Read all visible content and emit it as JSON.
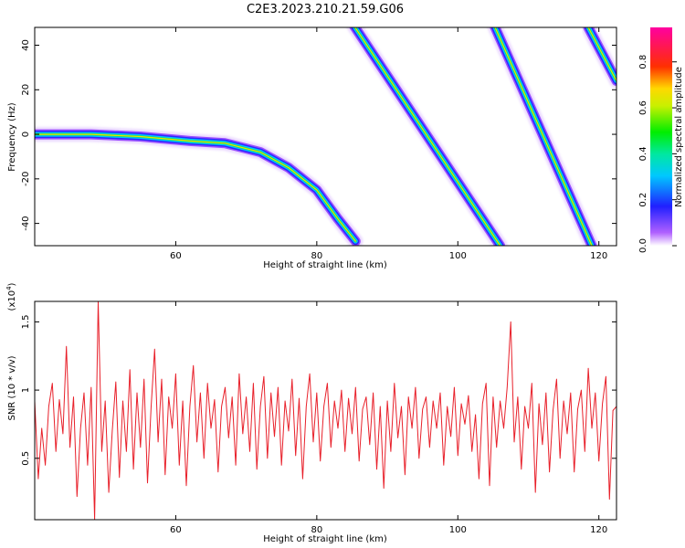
{
  "title": "C2E3.2023.210.21.59.G06",
  "colors": {
    "snr_line": "#e8202a",
    "axis": "#000000",
    "background": "#ffffff"
  },
  "chart_data": [
    {
      "type": "heatmap",
      "panel": "top",
      "xlabel": "Height of straight line (km)",
      "ylabel": "Frequency (Hz)",
      "xlim": [
        40,
        122.5
      ],
      "ylim": [
        -50,
        48
      ],
      "x_ticks": [
        60,
        80,
        100,
        120
      ],
      "y_ticks": [
        -40,
        -20,
        0,
        20,
        40
      ],
      "colorbar": {
        "label": "Normalized spectral amplitude",
        "range": [
          0.0,
          0.95
        ],
        "ticks": [
          "0.0",
          "0.2",
          "0.4",
          "0.6",
          "0.8"
        ],
        "colormap": "rainbow (violet-blue-cyan-green-yellow-red-magenta)"
      },
      "tracks": [
        {
          "name": "curve",
          "points": [
            [
              40,
              0
            ],
            [
              48,
              0
            ],
            [
              55,
              -1
            ],
            [
              62,
              -3
            ],
            [
              67,
              -4
            ],
            [
              72,
              -8
            ],
            [
              76,
              -15
            ],
            [
              80,
              -25
            ],
            [
              83,
              -38
            ],
            [
              85.5,
              -48
            ]
          ]
        },
        {
          "name": "diagonal-1",
          "points": [
            [
              85,
              50
            ],
            [
              106,
              -50
            ]
          ]
        },
        {
          "name": "diagonal-2",
          "points": [
            [
              105,
              50
            ],
            [
              119,
              -50
            ]
          ]
        },
        {
          "name": "diagonal-3",
          "points": [
            [
              118.5,
              48
            ],
            [
              122.5,
              24
            ]
          ]
        }
      ]
    },
    {
      "type": "line",
      "panel": "bottom",
      "xlabel": "Height of straight line (km)",
      "ylabel": "SNR (10 * v/v)",
      "y_multiplier": "(x10",
      "y_multiplier_exp": "4",
      "xlim": [
        40,
        122.5
      ],
      "ylim": [
        0.05,
        1.65
      ],
      "x_ticks": [
        60,
        80,
        100,
        120
      ],
      "y_ticks": [
        0.5,
        1.0,
        1.5
      ],
      "series": [
        {
          "values": [
            [
              40.0,
              0.92
            ],
            [
              40.5,
              0.35
            ],
            [
              41.0,
              0.72
            ],
            [
              41.5,
              0.45
            ],
            [
              42.0,
              0.88
            ],
            [
              42.5,
              1.05
            ],
            [
              43.0,
              0.55
            ],
            [
              43.5,
              0.93
            ],
            [
              44.0,
              0.68
            ],
            [
              44.5,
              1.32
            ],
            [
              45.0,
              0.58
            ],
            [
              45.5,
              0.95
            ],
            [
              46.0,
              0.22
            ],
            [
              46.5,
              0.72
            ],
            [
              47.0,
              0.98
            ],
            [
              47.5,
              0.45
            ],
            [
              48.0,
              1.02
            ],
            [
              48.5,
              0.05
            ],
            [
              49.0,
              1.65
            ],
            [
              49.5,
              0.55
            ],
            [
              50.0,
              0.92
            ],
            [
              50.5,
              0.25
            ],
            [
              51.0,
              0.7
            ],
            [
              51.5,
              1.06
            ],
            [
              52.0,
              0.36
            ],
            [
              52.5,
              0.92
            ],
            [
              53.0,
              0.55
            ],
            [
              53.5,
              1.15
            ],
            [
              54.0,
              0.42
            ],
            [
              54.5,
              0.98
            ],
            [
              55.0,
              0.58
            ],
            [
              55.5,
              1.08
            ],
            [
              56.0,
              0.32
            ],
            [
              56.5,
              0.87
            ],
            [
              57.0,
              1.3
            ],
            [
              57.5,
              0.62
            ],
            [
              58.0,
              1.08
            ],
            [
              58.5,
              0.38
            ],
            [
              59.0,
              0.95
            ],
            [
              59.5,
              0.72
            ],
            [
              60.0,
              1.12
            ],
            [
              60.5,
              0.45
            ],
            [
              61.0,
              0.92
            ],
            [
              61.5,
              0.3
            ],
            [
              62.0,
              0.88
            ],
            [
              62.5,
              1.18
            ],
            [
              63.0,
              0.62
            ],
            [
              63.5,
              0.98
            ],
            [
              64.0,
              0.5
            ],
            [
              64.5,
              1.05
            ],
            [
              65.0,
              0.72
            ],
            [
              65.5,
              0.93
            ],
            [
              66.0,
              0.4
            ],
            [
              66.5,
              0.88
            ],
            [
              67.0,
              1.02
            ],
            [
              67.5,
              0.65
            ],
            [
              68.0,
              0.95
            ],
            [
              68.5,
              0.45
            ],
            [
              69.0,
              1.12
            ],
            [
              69.5,
              0.68
            ],
            [
              70.0,
              0.95
            ],
            [
              70.5,
              0.55
            ],
            [
              71.0,
              1.05
            ],
            [
              71.5,
              0.42
            ],
            [
              72.0,
              0.88
            ],
            [
              72.5,
              1.1
            ],
            [
              73.0,
              0.5
            ],
            [
              73.5,
              0.98
            ],
            [
              74.0,
              0.66
            ],
            [
              74.5,
              1.02
            ],
            [
              75.0,
              0.45
            ],
            [
              75.5,
              0.92
            ],
            [
              76.0,
              0.7
            ],
            [
              76.5,
              1.08
            ],
            [
              77.0,
              0.52
            ],
            [
              77.5,
              0.94
            ],
            [
              78.0,
              0.35
            ],
            [
              78.5,
              0.88
            ],
            [
              79.0,
              1.12
            ],
            [
              79.5,
              0.62
            ],
            [
              80.0,
              0.98
            ],
            [
              80.5,
              0.48
            ],
            [
              81.0,
              0.88
            ],
            [
              81.5,
              1.05
            ],
            [
              82.0,
              0.58
            ],
            [
              82.5,
              0.92
            ],
            [
              83.0,
              0.72
            ],
            [
              83.5,
              1.0
            ],
            [
              84.0,
              0.55
            ],
            [
              84.5,
              0.94
            ],
            [
              85.0,
              0.68
            ],
            [
              85.5,
              1.02
            ],
            [
              86.0,
              0.48
            ],
            [
              86.5,
              0.86
            ],
            [
              87.0,
              0.95
            ],
            [
              87.5,
              0.6
            ],
            [
              88.0,
              0.98
            ],
            [
              88.5,
              0.42
            ],
            [
              89.0,
              0.88
            ],
            [
              89.5,
              0.28
            ],
            [
              90.0,
              0.92
            ],
            [
              90.5,
              0.55
            ],
            [
              91.0,
              1.05
            ],
            [
              91.5,
              0.65
            ],
            [
              92.0,
              0.88
            ],
            [
              92.5,
              0.38
            ],
            [
              93.0,
              0.95
            ],
            [
              93.5,
              0.72
            ],
            [
              94.0,
              1.02
            ],
            [
              94.5,
              0.5
            ],
            [
              95.0,
              0.86
            ],
            [
              95.5,
              0.95
            ],
            [
              96.0,
              0.58
            ],
            [
              96.5,
              0.92
            ],
            [
              97.0,
              0.72
            ],
            [
              97.5,
              0.98
            ],
            [
              98.0,
              0.45
            ],
            [
              98.5,
              0.88
            ],
            [
              99.0,
              0.66
            ],
            [
              99.5,
              1.02
            ],
            [
              100.0,
              0.52
            ],
            [
              100.5,
              0.9
            ],
            [
              101.0,
              0.75
            ],
            [
              101.5,
              0.96
            ],
            [
              102.0,
              0.55
            ],
            [
              102.5,
              0.82
            ],
            [
              103.0,
              0.35
            ],
            [
              103.5,
              0.9
            ],
            [
              104.0,
              1.05
            ],
            [
              104.5,
              0.3
            ],
            [
              105.0,
              0.95
            ],
            [
              105.5,
              0.58
            ],
            [
              106.0,
              0.92
            ],
            [
              106.5,
              0.72
            ],
            [
              107.0,
              1.02
            ],
            [
              107.5,
              1.5
            ],
            [
              108.0,
              0.62
            ],
            [
              108.5,
              0.95
            ],
            [
              109.0,
              0.42
            ],
            [
              109.5,
              0.88
            ],
            [
              110.0,
              0.72
            ],
            [
              110.5,
              1.05
            ],
            [
              111.0,
              0.25
            ],
            [
              111.5,
              0.9
            ],
            [
              112.0,
              0.6
            ],
            [
              112.5,
              0.98
            ],
            [
              113.0,
              0.4
            ],
            [
              113.5,
              0.85
            ],
            [
              114.0,
              1.08
            ],
            [
              114.5,
              0.5
            ],
            [
              115.0,
              0.92
            ],
            [
              115.5,
              0.68
            ],
            [
              116.0,
              0.98
            ],
            [
              116.5,
              0.4
            ],
            [
              117.0,
              0.86
            ],
            [
              117.5,
              1.0
            ],
            [
              118.0,
              0.55
            ],
            [
              118.5,
              1.16
            ],
            [
              119.0,
              0.72
            ],
            [
              119.5,
              0.98
            ],
            [
              120.0,
              0.48
            ],
            [
              120.5,
              0.9
            ],
            [
              121.0,
              1.1
            ],
            [
              121.5,
              0.2
            ],
            [
              122.0,
              0.85
            ],
            [
              122.5,
              0.88
            ]
          ]
        }
      ]
    }
  ]
}
